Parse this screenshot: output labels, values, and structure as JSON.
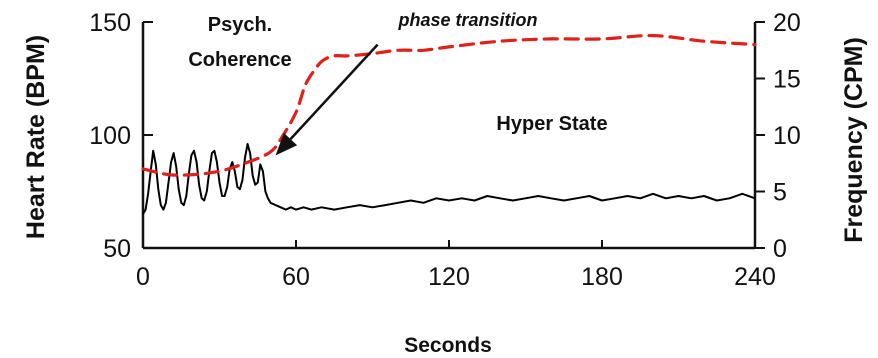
{
  "chart_data": {
    "type": "line",
    "xlabel": "Seconds",
    "ylabel_left": "Heart Rate (BPM)",
    "ylabel_right": "Frequency (CPM)",
    "xlim": [
      0,
      240
    ],
    "ylim_left": [
      50,
      150
    ],
    "ylim_right": [
      0,
      20
    ],
    "x_ticks": [
      "0",
      "60",
      "120",
      "180",
      "240"
    ],
    "y_ticks_left": [
      "50",
      "100",
      "150"
    ],
    "y_ticks_right": [
      "0",
      "5",
      "10",
      "15",
      "20"
    ],
    "grid": false,
    "annotations": {
      "coherence_line1": "Psych.",
      "coherence_line2": "Coherence",
      "phase": "phase transition",
      "hyper": "Hyper State"
    },
    "series": [
      {
        "axis": "left",
        "color": "#000000",
        "style": "solid",
        "x": [
          0,
          1,
          2,
          3,
          4,
          5,
          6,
          7,
          8,
          9,
          10,
          11,
          12,
          13,
          14,
          15,
          16,
          17,
          18,
          19,
          20,
          21,
          22,
          23,
          24,
          25,
          26,
          27,
          28,
          29,
          30,
          31,
          32,
          33,
          34,
          35,
          36,
          37,
          38,
          39,
          40,
          41,
          42,
          43,
          44,
          45,
          46,
          47,
          48,
          49,
          50,
          52,
          54,
          56,
          58,
          60,
          63,
          66,
          70,
          75,
          80,
          85,
          90,
          95,
          100,
          105,
          110,
          115,
          120,
          125,
          130,
          135,
          140,
          145,
          150,
          155,
          160,
          165,
          170,
          175,
          180,
          185,
          190,
          195,
          200,
          205,
          210,
          215,
          220,
          225,
          230,
          235,
          240
        ],
        "values": [
          65,
          67,
          74,
          84,
          93,
          87,
          76,
          69,
          67,
          70,
          79,
          88,
          92,
          86,
          76,
          70,
          69,
          73,
          83,
          91,
          93,
          88,
          78,
          72,
          71,
          75,
          84,
          92,
          93,
          88,
          79,
          73,
          73,
          77,
          85,
          88,
          84,
          77,
          76,
          80,
          90,
          96,
          92,
          82,
          78,
          79,
          87,
          84,
          75,
          72,
          70,
          69,
          68,
          67,
          68,
          67,
          68,
          67,
          68,
          67,
          68,
          69,
          68,
          69,
          70,
          71,
          70,
          72,
          71,
          72,
          71,
          73,
          72,
          71,
          72,
          73,
          72,
          71,
          72,
          73,
          71,
          72,
          73,
          72,
          74,
          72,
          73,
          72,
          73,
          71,
          72,
          74,
          72
        ]
      },
      {
        "axis": "right",
        "color": "#e0201b",
        "style": "dashed",
        "x": [
          0,
          10,
          20,
          30,
          40,
          50,
          55,
          60,
          63,
          65,
          70,
          75,
          80,
          90,
          100,
          110,
          120,
          140,
          160,
          180,
          200,
          220,
          240
        ],
        "values": [
          7,
          6.5,
          6.5,
          6.8,
          7.5,
          8.5,
          10,
          12,
          14,
          15,
          16.5,
          17,
          17,
          17.2,
          17.5,
          17.5,
          17.8,
          18.3,
          18.5,
          18.5,
          18.8,
          18.3,
          18
        ]
      }
    ],
    "transition_arrow": {
      "from": [
        92,
        18
      ],
      "to": [
        52,
        8.2
      ]
    }
  }
}
